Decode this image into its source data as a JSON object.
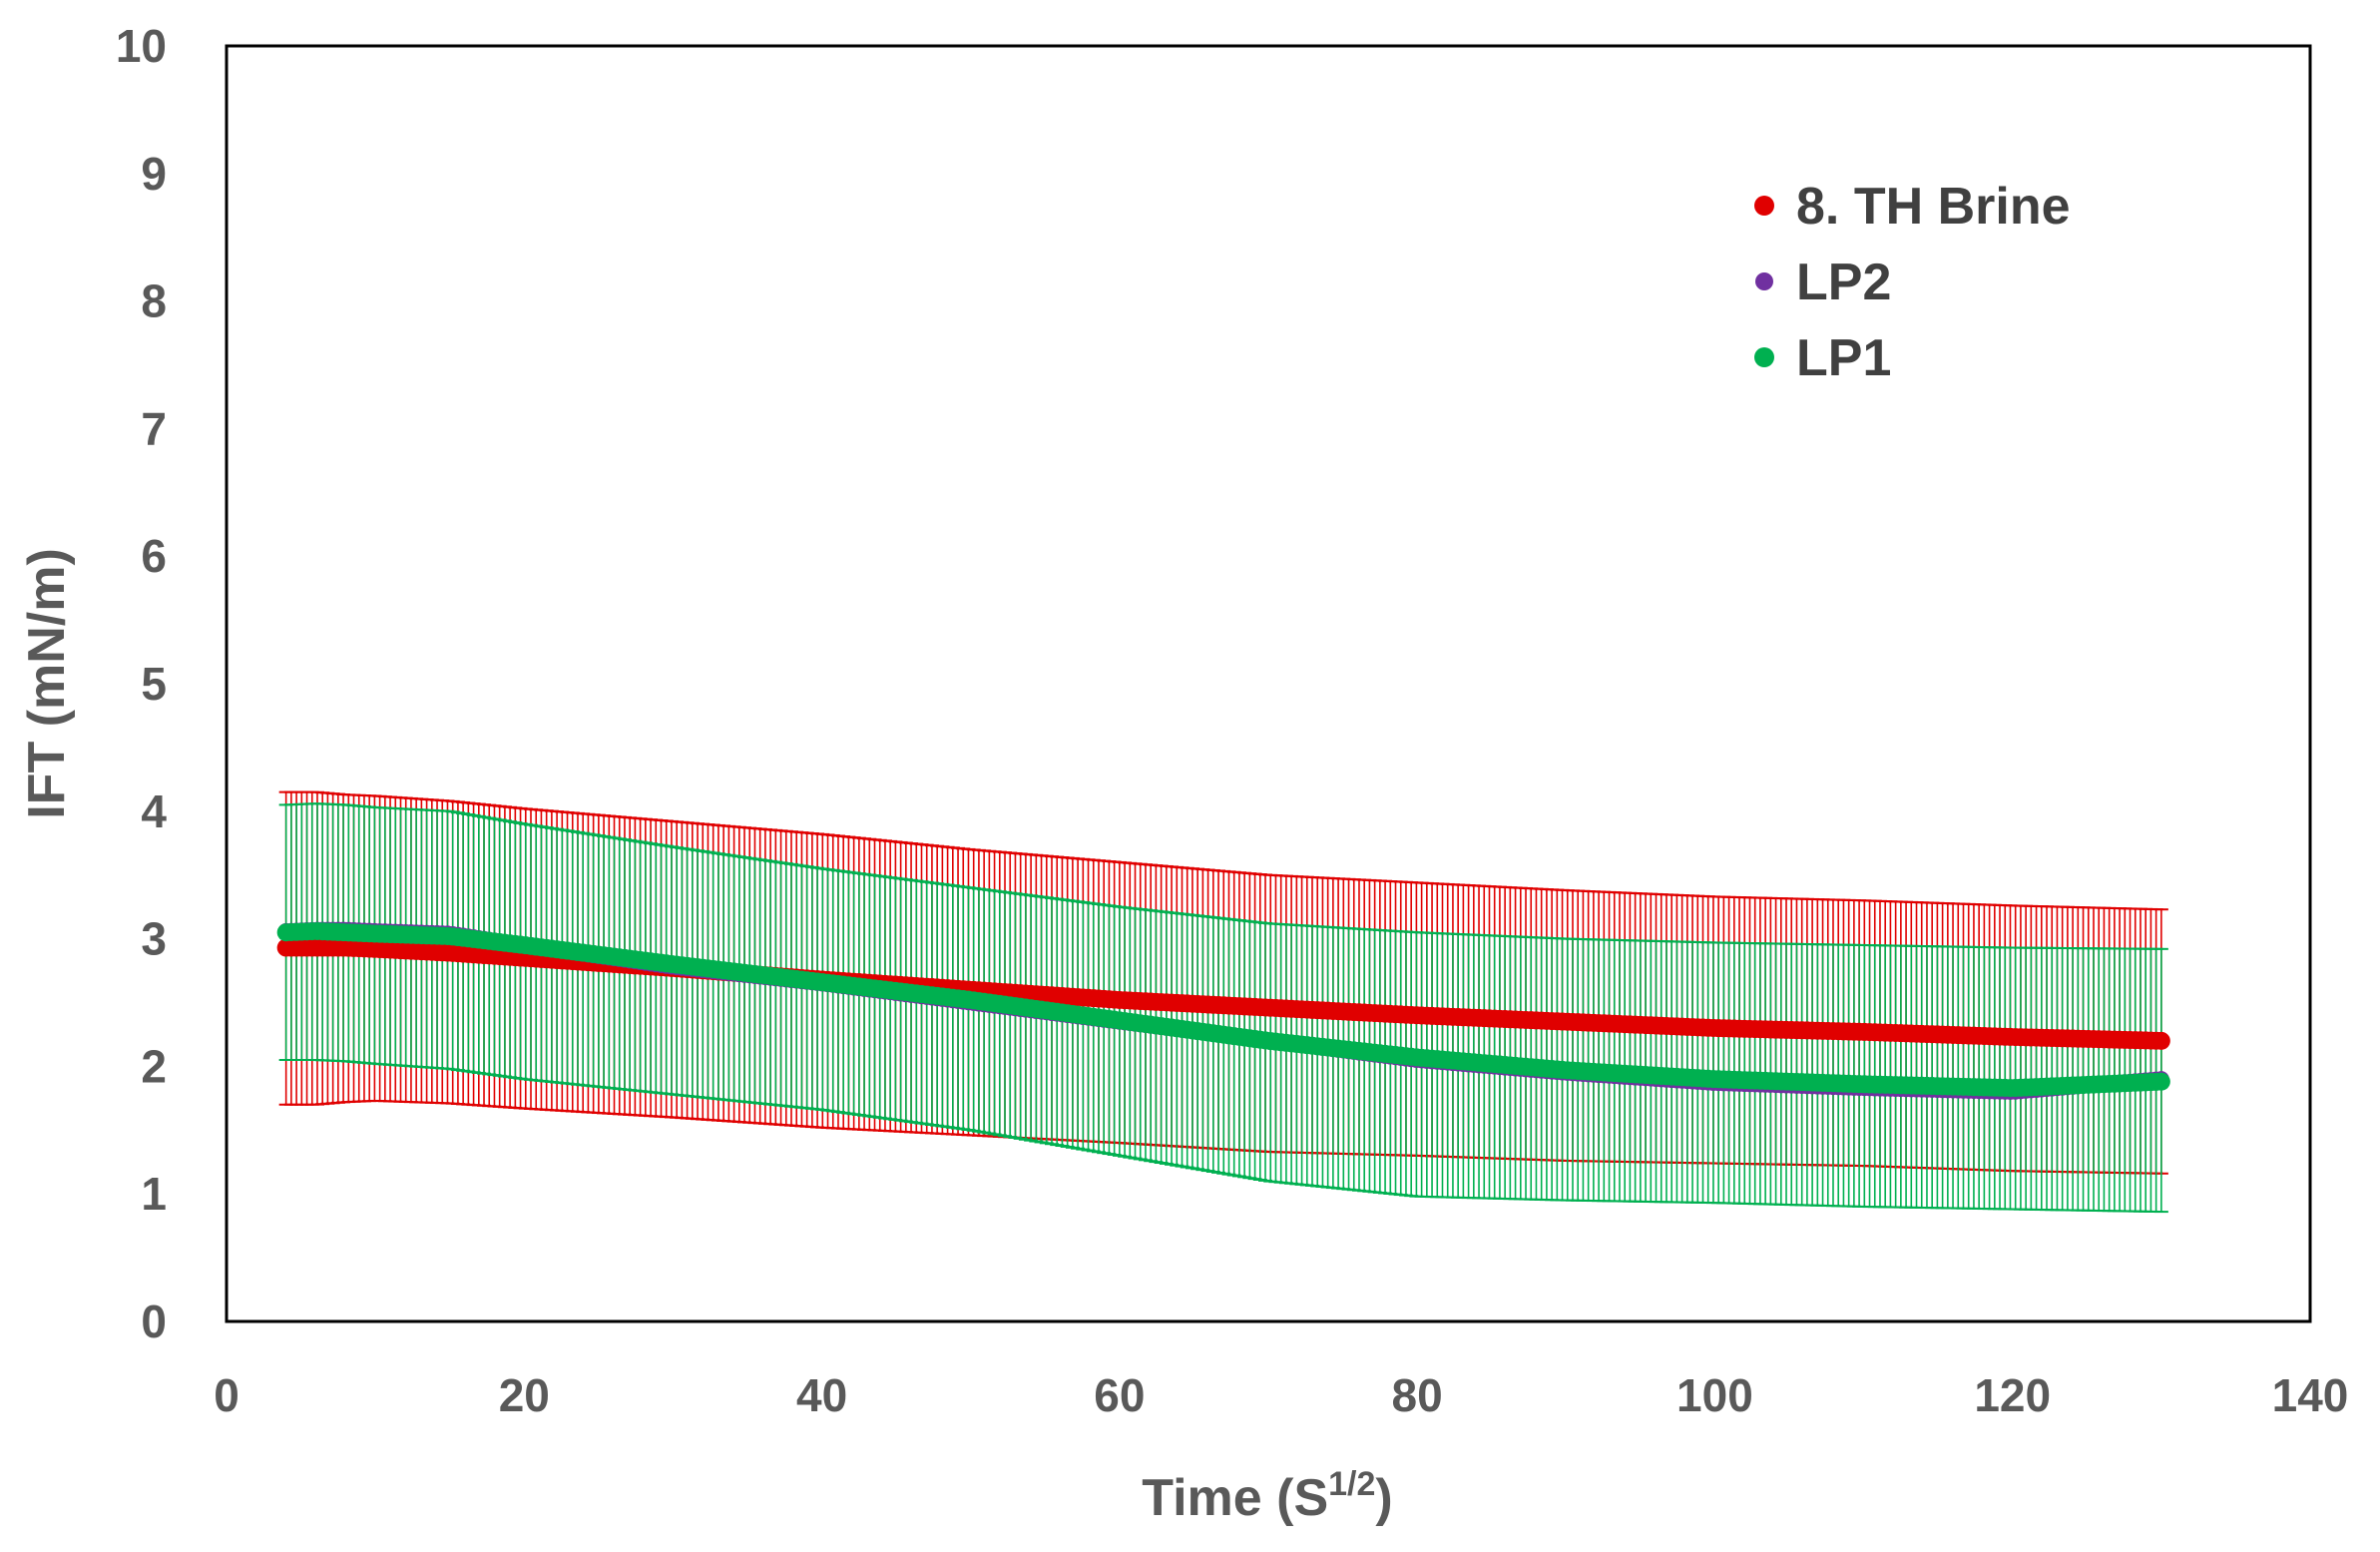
{
  "chart_data": {
    "type": "scatter",
    "xlabel": "Time (S",
    "xlabel_sup": "1/2",
    "xlabel_close": ")",
    "ylabel": "IFT (mN/m)",
    "xlim": [
      0,
      140
    ],
    "ylim": [
      0,
      10
    ],
    "x_ticks": [
      "0",
      "20",
      "40",
      "60",
      "80",
      "100",
      "120",
      "140"
    ],
    "y_ticks": [
      "0",
      "1",
      "2",
      "3",
      "4",
      "5",
      "6",
      "7",
      "8",
      "9",
      "10"
    ],
    "grid": false,
    "legend_position": "top-right",
    "series": [
      {
        "name": "8. TH Brine",
        "color": "#e00000",
        "x": [
          4,
          6,
          8,
          10,
          15,
          20,
          30,
          40,
          50,
          60,
          70,
          80,
          90,
          100,
          110,
          120,
          130
        ],
        "y": [
          2.93,
          2.93,
          2.93,
          2.92,
          2.89,
          2.85,
          2.77,
          2.68,
          2.6,
          2.52,
          2.46,
          2.4,
          2.35,
          2.3,
          2.27,
          2.23,
          2.2
        ],
        "y_err_upper": [
          4.15,
          4.15,
          4.13,
          4.12,
          4.08,
          4.02,
          3.92,
          3.82,
          3.7,
          3.6,
          3.5,
          3.44,
          3.38,
          3.33,
          3.3,
          3.26,
          3.23
        ],
        "y_err_lower": [
          1.7,
          1.7,
          1.72,
          1.73,
          1.71,
          1.67,
          1.6,
          1.52,
          1.46,
          1.4,
          1.33,
          1.3,
          1.26,
          1.24,
          1.22,
          1.18,
          1.16
        ]
      },
      {
        "name": "LP2",
        "color": "#7030a0",
        "x": [
          4,
          6,
          8,
          10,
          15,
          20,
          30,
          40,
          50,
          60,
          70,
          80,
          90,
          100,
          110,
          120,
          130
        ],
        "y": [
          3.06,
          3.07,
          3.07,
          3.06,
          3.04,
          2.95,
          2.78,
          2.65,
          2.5,
          2.35,
          2.2,
          2.05,
          1.95,
          1.87,
          1.83,
          1.8,
          1.9
        ]
      },
      {
        "name": "LP1",
        "color": "#00b050",
        "x": [
          4,
          6,
          8,
          10,
          15,
          20,
          30,
          40,
          50,
          60,
          70,
          80,
          90,
          100,
          110,
          120,
          130
        ],
        "y": [
          3.05,
          3.06,
          3.05,
          3.04,
          3.02,
          2.95,
          2.8,
          2.66,
          2.52,
          2.36,
          2.2,
          2.07,
          1.97,
          1.9,
          1.86,
          1.83,
          1.88
        ],
        "y_err_upper": [
          4.05,
          4.06,
          4.05,
          4.03,
          4.0,
          3.9,
          3.72,
          3.55,
          3.4,
          3.25,
          3.12,
          3.05,
          3.0,
          2.97,
          2.95,
          2.93,
          2.92
        ],
        "y_err_lower": [
          2.05,
          2.05,
          2.04,
          2.02,
          1.98,
          1.9,
          1.78,
          1.66,
          1.5,
          1.3,
          1.1,
          0.98,
          0.95,
          0.93,
          0.9,
          0.88,
          0.86
        ]
      }
    ]
  }
}
